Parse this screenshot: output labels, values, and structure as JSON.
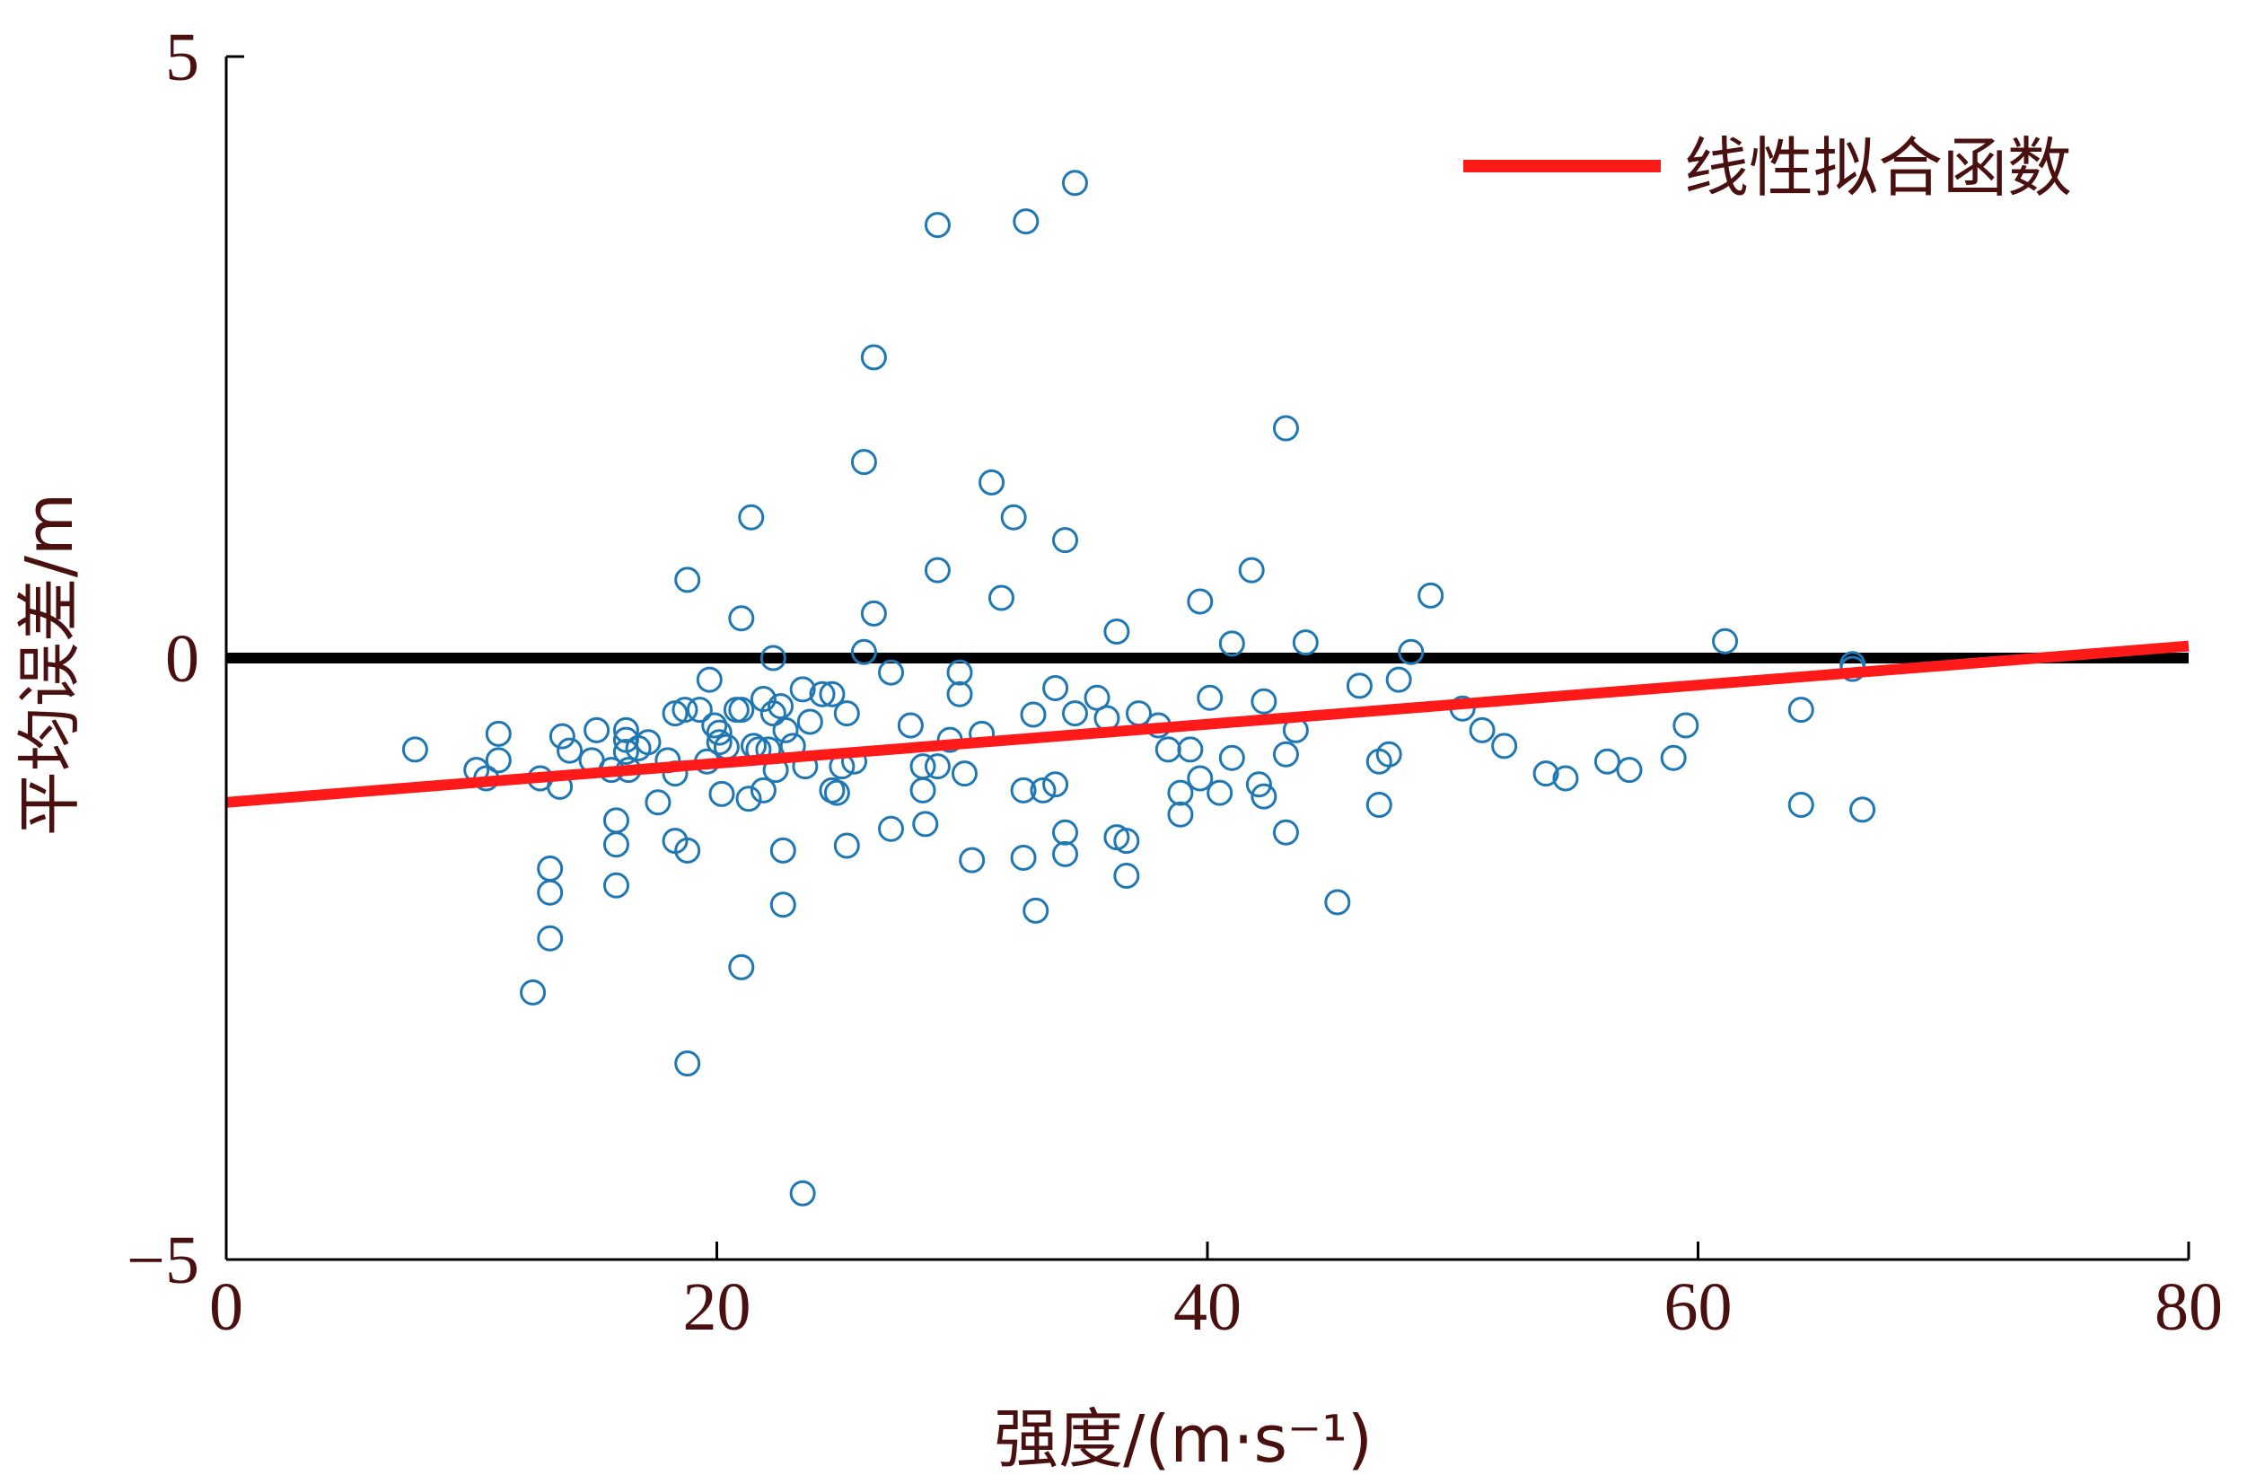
{
  "chart_data": {
    "type": "scatter",
    "xlabel": "强度/(m·s⁻¹)",
    "ylabel": "平均误差/m",
    "xlim": [
      0,
      80
    ],
    "ylim": [
      -5,
      5
    ],
    "xticks": [
      "0",
      "20",
      "40",
      "60",
      "80"
    ],
    "yticks": [
      "5",
      "0",
      "−5"
    ],
    "legend": {
      "label": "线性拟合函数",
      "position": "top-right"
    },
    "colors": {
      "points": "#1f77b4",
      "fit_line": "#ff1a1a",
      "zero_line": "#000000",
      "text": "#4a1010"
    },
    "zero_line": 0,
    "fit_line": {
      "x": [
        0,
        80
      ],
      "y": [
        -1.2,
        0.1
      ]
    },
    "points": [
      [
        7.7,
        -0.76
      ],
      [
        10.2,
        -0.93
      ],
      [
        10.6,
        -1.0
      ],
      [
        11.1,
        -0.85
      ],
      [
        11.1,
        -0.63
      ],
      [
        12.5,
        -2.78
      ],
      [
        12.8,
        -1.0
      ],
      [
        13.2,
        -1.75
      ],
      [
        13.2,
        -1.95
      ],
      [
        13.2,
        -2.33
      ],
      [
        13.6,
        -1.07
      ],
      [
        13.7,
        -0.65
      ],
      [
        14.0,
        -0.77
      ],
      [
        14.9,
        -0.85
      ],
      [
        15.1,
        -0.6
      ],
      [
        15.7,
        -0.93
      ],
      [
        15.9,
        -1.35
      ],
      [
        15.9,
        -1.55
      ],
      [
        15.9,
        -1.89
      ],
      [
        16.3,
        -0.6
      ],
      [
        16.3,
        -0.68
      ],
      [
        16.3,
        -0.78
      ],
      [
        16.4,
        -0.93
      ],
      [
        16.8,
        -0.75
      ],
      [
        17.2,
        -0.7
      ],
      [
        17.6,
        -1.2
      ],
      [
        18.0,
        -0.85
      ],
      [
        18.3,
        -0.46
      ],
      [
        18.3,
        -0.96
      ],
      [
        18.3,
        -1.52
      ],
      [
        18.7,
        -0.43
      ],
      [
        18.8,
        0.65
      ],
      [
        18.8,
        -1.6
      ],
      [
        18.8,
        -3.37
      ],
      [
        19.3,
        -0.43
      ],
      [
        19.6,
        -0.86
      ],
      [
        19.7,
        -0.18
      ],
      [
        19.9,
        -0.56
      ],
      [
        20.1,
        -0.62
      ],
      [
        20.1,
        -0.7
      ],
      [
        20.2,
        -1.13
      ],
      [
        20.4,
        -0.74
      ],
      [
        20.8,
        -0.43
      ],
      [
        21.0,
        -0.43
      ],
      [
        21.0,
        -2.57
      ],
      [
        21.0,
        0.33
      ],
      [
        21.3,
        -1.17
      ],
      [
        21.4,
        1.17
      ],
      [
        21.5,
        -0.73
      ],
      [
        21.7,
        -0.76
      ],
      [
        21.9,
        -0.34
      ],
      [
        21.9,
        -1.1
      ],
      [
        22.1,
        -0.76
      ],
      [
        22.3,
        0.0
      ],
      [
        22.3,
        -0.46
      ],
      [
        22.4,
        -0.93
      ],
      [
        22.6,
        -0.4
      ],
      [
        22.7,
        -1.6
      ],
      [
        22.7,
        -2.05
      ],
      [
        22.8,
        -0.6
      ],
      [
        23.1,
        -0.73
      ],
      [
        23.5,
        -4.45
      ],
      [
        23.5,
        -0.26
      ],
      [
        23.6,
        -0.9
      ],
      [
        23.8,
        -0.53
      ],
      [
        24.3,
        -0.3
      ],
      [
        24.7,
        -0.3
      ],
      [
        24.7,
        -1.1
      ],
      [
        24.9,
        -1.12
      ],
      [
        25.1,
        -0.9
      ],
      [
        25.3,
        -0.46
      ],
      [
        25.3,
        -1.56
      ],
      [
        25.6,
        -0.86
      ],
      [
        26.0,
        0.05
      ],
      [
        26.0,
        1.63
      ],
      [
        26.4,
        2.5
      ],
      [
        26.4,
        0.37
      ],
      [
        27.1,
        -0.12
      ],
      [
        27.1,
        -1.42
      ],
      [
        27.9,
        -0.56
      ],
      [
        28.4,
        -0.9
      ],
      [
        28.4,
        -1.1
      ],
      [
        28.5,
        -1.38
      ],
      [
        29.0,
        3.6
      ],
      [
        29.0,
        0.73
      ],
      [
        29.0,
        -0.9
      ],
      [
        29.5,
        -0.68
      ],
      [
        29.9,
        -0.12
      ],
      [
        29.9,
        -0.3
      ],
      [
        30.1,
        -0.96
      ],
      [
        30.4,
        -1.68
      ],
      [
        30.8,
        -0.63
      ],
      [
        31.2,
        1.46
      ],
      [
        31.6,
        0.5
      ],
      [
        32.1,
        1.17
      ],
      [
        32.5,
        -1.1
      ],
      [
        32.5,
        -1.66
      ],
      [
        32.6,
        3.63
      ],
      [
        32.9,
        -0.47
      ],
      [
        33.0,
        -2.1
      ],
      [
        33.3,
        -1.1
      ],
      [
        33.8,
        -0.25
      ],
      [
        33.8,
        -1.05
      ],
      [
        34.2,
        -1.45
      ],
      [
        34.2,
        -1.63
      ],
      [
        34.2,
        0.98
      ],
      [
        34.6,
        3.95
      ],
      [
        34.6,
        -0.46
      ],
      [
        35.5,
        -0.33
      ],
      [
        35.9,
        -0.5
      ],
      [
        36.3,
        0.22
      ],
      [
        36.3,
        -1.49
      ],
      [
        36.7,
        -1.52
      ],
      [
        36.7,
        -1.81
      ],
      [
        37.2,
        -0.46
      ],
      [
        38.0,
        -0.56
      ],
      [
        38.4,
        -0.76
      ],
      [
        38.9,
        -1.12
      ],
      [
        38.9,
        -1.3
      ],
      [
        39.3,
        -0.76
      ],
      [
        39.7,
        -1.0
      ],
      [
        39.7,
        0.47
      ],
      [
        40.1,
        -0.33
      ],
      [
        40.5,
        -1.12
      ],
      [
        41.0,
        -0.83
      ],
      [
        41.0,
        0.12
      ],
      [
        41.8,
        0.73
      ],
      [
        42.1,
        -1.05
      ],
      [
        42.3,
        -1.15
      ],
      [
        42.3,
        -0.36
      ],
      [
        43.2,
        -1.45
      ],
      [
        43.2,
        -0.8
      ],
      [
        43.2,
        1.91
      ],
      [
        43.6,
        -0.6
      ],
      [
        44.0,
        0.13
      ],
      [
        45.3,
        -2.03
      ],
      [
        46.2,
        -0.23
      ],
      [
        47.0,
        -1.22
      ],
      [
        47.0,
        -0.86
      ],
      [
        47.4,
        -0.8
      ],
      [
        47.8,
        -0.18
      ],
      [
        48.3,
        0.05
      ],
      [
        49.1,
        0.52
      ],
      [
        50.4,
        -0.42
      ],
      [
        51.2,
        -0.6
      ],
      [
        52.1,
        -0.73
      ],
      [
        53.8,
        -0.96
      ],
      [
        54.6,
        -1.0
      ],
      [
        56.3,
        -0.86
      ],
      [
        57.2,
        -0.93
      ],
      [
        59.0,
        -0.83
      ],
      [
        59.5,
        -0.56
      ],
      [
        61.1,
        0.14
      ],
      [
        64.2,
        -0.43
      ],
      [
        64.2,
        -1.22
      ],
      [
        66.3,
        -0.05
      ],
      [
        66.3,
        -0.09
      ],
      [
        66.7,
        -1.26
      ]
    ]
  }
}
